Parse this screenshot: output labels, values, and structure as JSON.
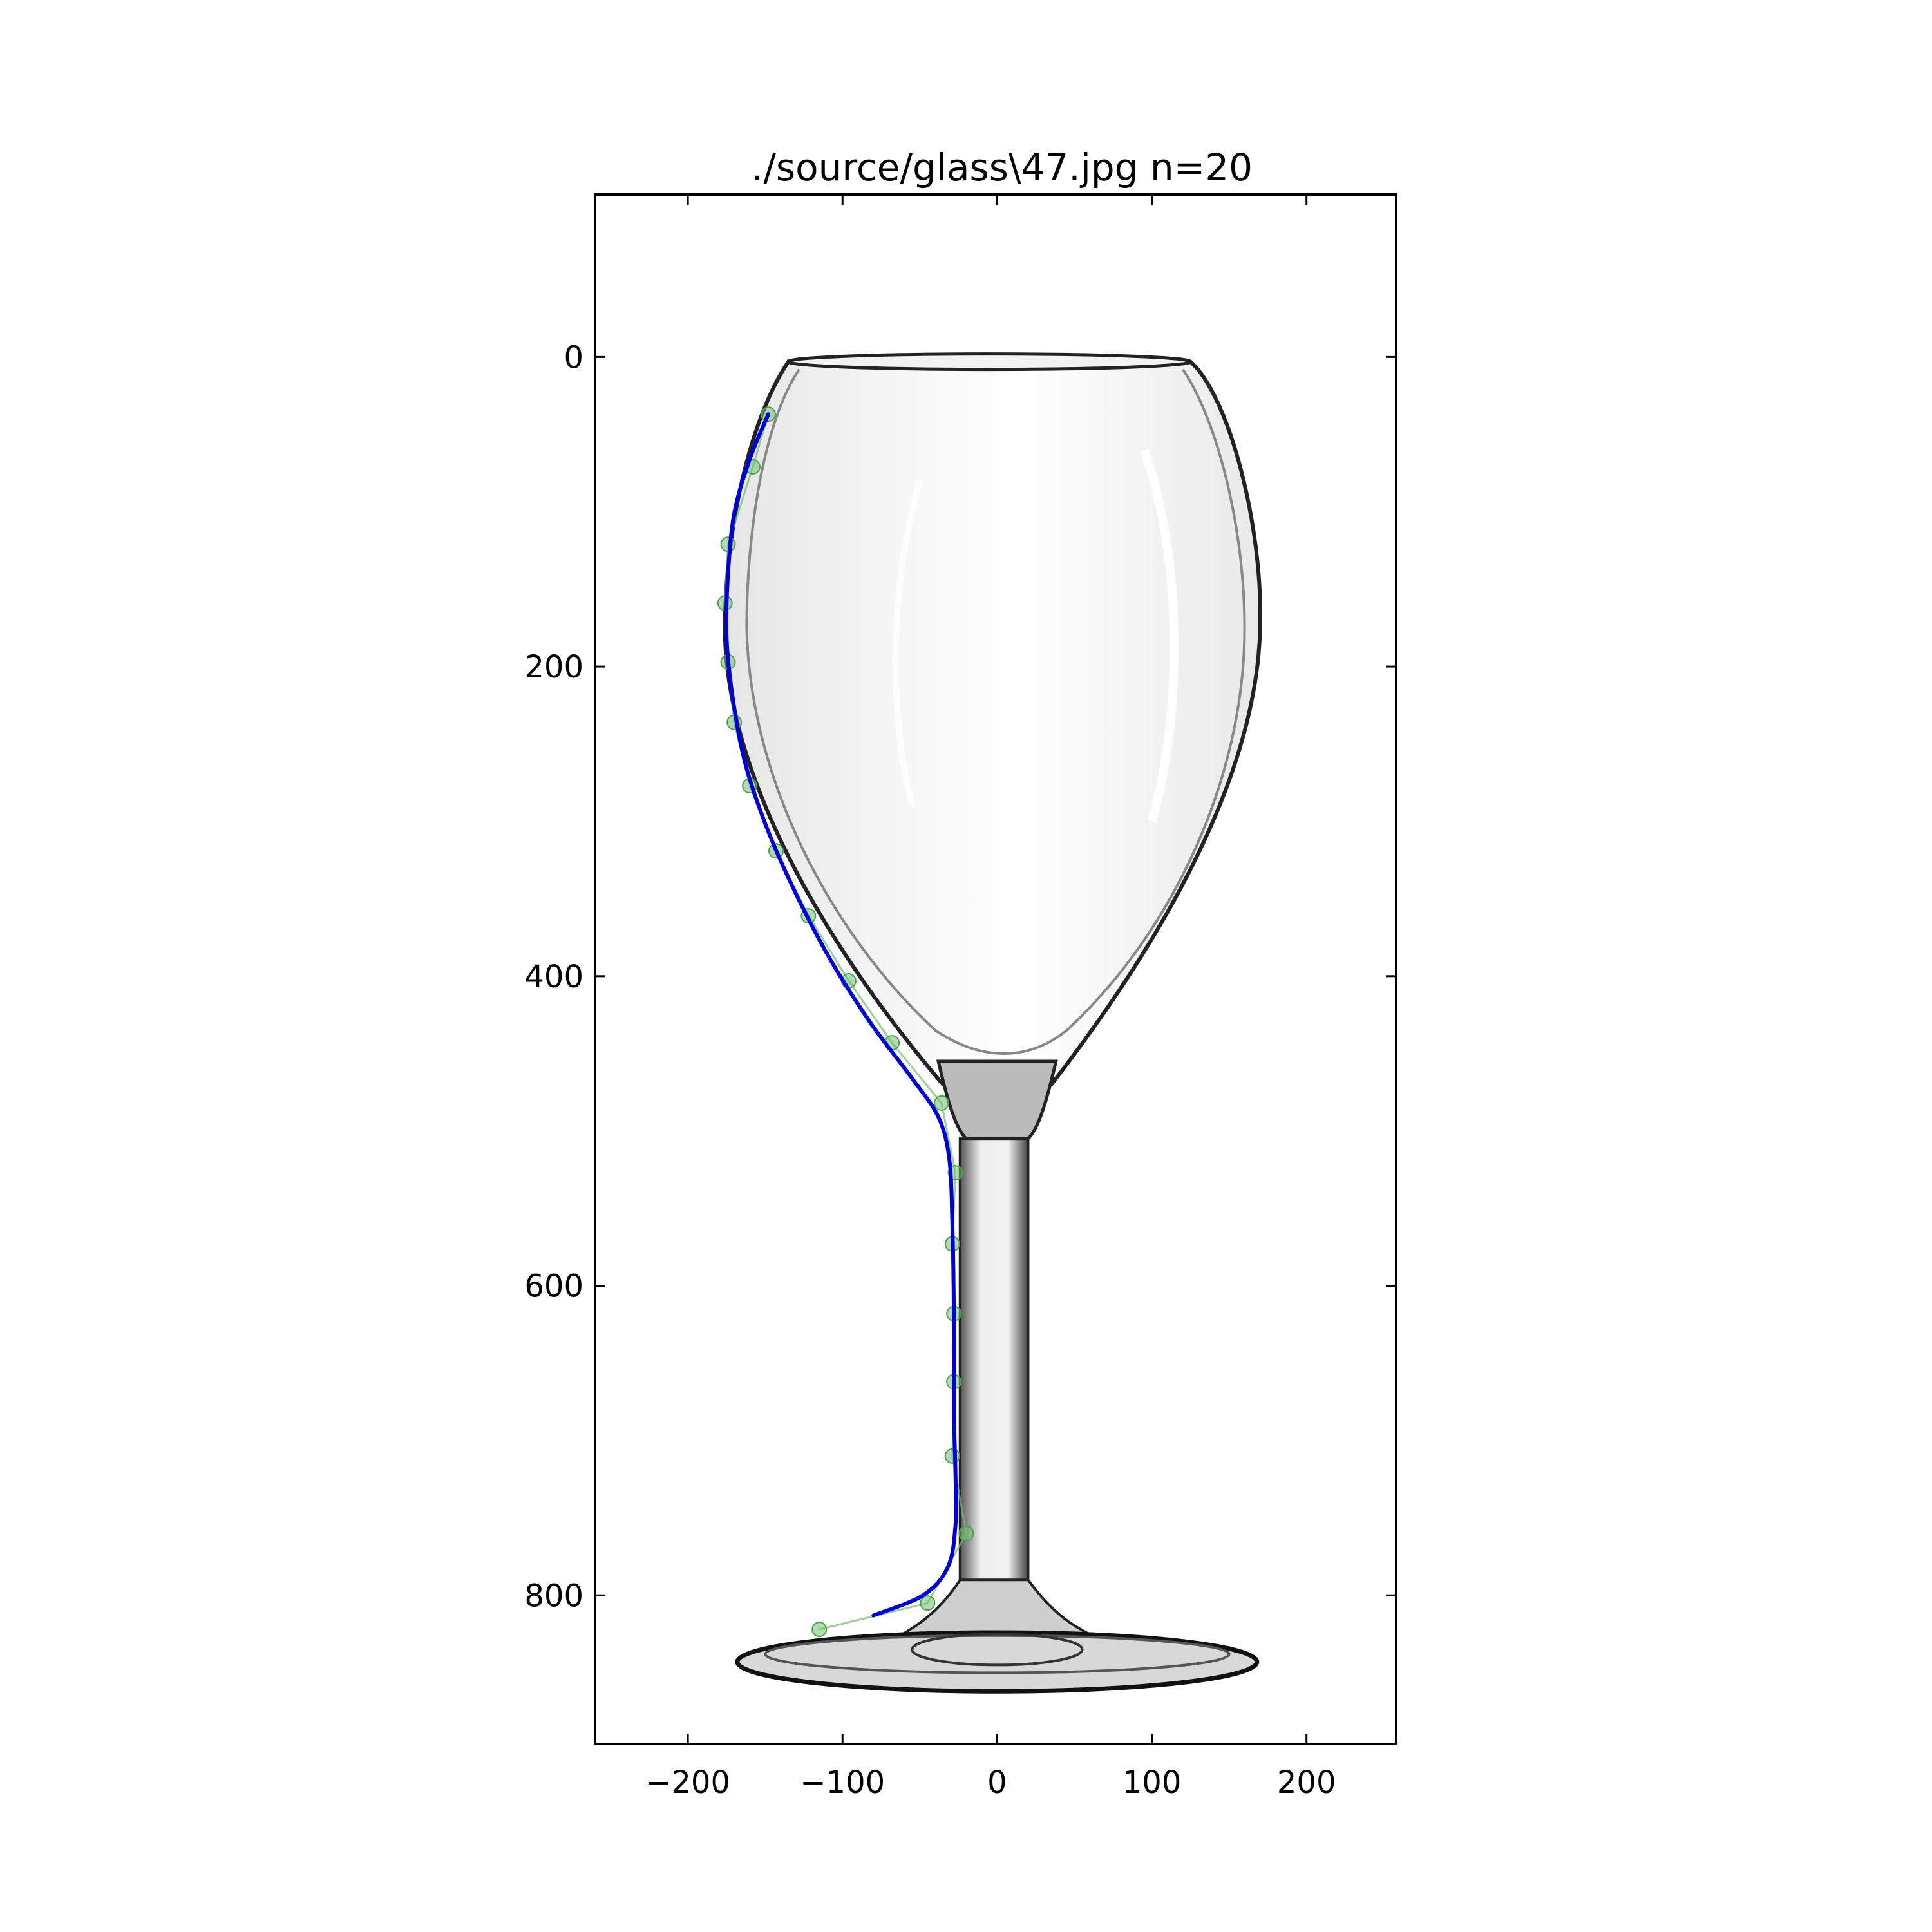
{
  "chart_data": {
    "type": "scatter",
    "title": "./source/glass\\47.jpg n=20",
    "xlabel": "",
    "ylabel": "",
    "xlim": [
      -260,
      258
    ],
    "ylim": [
      896,
      -105
    ],
    "y_inverted": true,
    "grid": false,
    "background": "photo of a wine glass (grayscale)",
    "x_ticks": [
      {
        "value": -200,
        "label": "−200"
      },
      {
        "value": -100,
        "label": "−100"
      },
      {
        "value": 0,
        "label": "0"
      },
      {
        "value": 100,
        "label": "100"
      },
      {
        "value": 200,
        "label": "200"
      }
    ],
    "y_ticks": [
      {
        "value": 0,
        "label": "0"
      },
      {
        "value": 200,
        "label": "200"
      },
      {
        "value": 400,
        "label": "400"
      },
      {
        "value": 600,
        "label": "600"
      },
      {
        "value": 800,
        "label": "800"
      }
    ],
    "series": [
      {
        "kind": "control-points",
        "color": "#6fbf6f",
        "points": [
          [
            -148,
            37
          ],
          [
            -158,
            71
          ],
          [
            -174,
            121
          ],
          [
            -176,
            159
          ],
          [
            -174,
            197
          ],
          [
            -170,
            236
          ],
          [
            -160,
            277
          ],
          [
            -143,
            319
          ],
          [
            -122,
            361
          ],
          [
            -96,
            403
          ],
          [
            -68,
            443
          ],
          [
            -36,
            482
          ],
          [
            -27,
            527
          ],
          [
            -29,
            573
          ],
          [
            -28,
            618
          ],
          [
            -28,
            662
          ],
          [
            -29,
            710
          ],
          [
            -20,
            760
          ],
          [
            -45,
            805
          ],
          [
            -115,
            822
          ]
        ]
      },
      {
        "kind": "fitted-curve",
        "color": "#0000dd",
        "points": [
          [
            -148,
            37
          ],
          [
            -160,
            66
          ],
          [
            -170,
            101
          ],
          [
            -174,
            140
          ],
          [
            -175,
            180
          ],
          [
            -171,
            220
          ],
          [
            -163,
            262
          ],
          [
            -149,
            304
          ],
          [
            -130,
            347
          ],
          [
            -108,
            389
          ],
          [
            -82,
            430
          ],
          [
            -55,
            466
          ],
          [
            -38,
            491
          ],
          [
            -31,
            518
          ],
          [
            -29,
            560
          ],
          [
            -28,
            620
          ],
          [
            -28,
            680
          ],
          [
            -27,
            720
          ],
          [
            -27,
            755
          ],
          [
            -32,
            782
          ],
          [
            -48,
            800
          ],
          [
            -80,
            813
          ]
        ]
      }
    ]
  }
}
